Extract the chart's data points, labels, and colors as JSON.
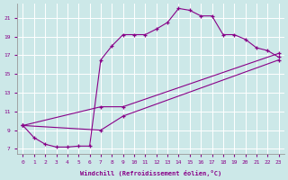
{
  "background_color": "#cce8e8",
  "grid_color": "#ffffff",
  "line_color": "#880088",
  "xlabel": "Windchill (Refroidissement éolien,°C)",
  "xlim": [
    -0.5,
    23.5
  ],
  "ylim": [
    6.5,
    22.5
  ],
  "yticks": [
    7,
    9,
    11,
    13,
    15,
    17,
    19,
    21
  ],
  "xticks": [
    0,
    1,
    2,
    3,
    4,
    5,
    6,
    7,
    8,
    9,
    10,
    11,
    12,
    13,
    14,
    15,
    16,
    17,
    18,
    19,
    20,
    21,
    22,
    23
  ],
  "line1_x": [
    0,
    1,
    2,
    3,
    4,
    5,
    6,
    7,
    8,
    9,
    10,
    11,
    12,
    13,
    14,
    15,
    16,
    17,
    18,
    19,
    20,
    21,
    22,
    23
  ],
  "line1_y": [
    9.5,
    8.2,
    7.5,
    7.2,
    7.2,
    7.3,
    7.3,
    16.5,
    18.0,
    19.2,
    19.2,
    19.2,
    19.8,
    20.5,
    22.0,
    21.8,
    21.2,
    21.2,
    19.2,
    19.2,
    18.7,
    17.8,
    17.5,
    16.8
  ],
  "line2_x": [
    0,
    7,
    9,
    23
  ],
  "line2_y": [
    9.5,
    11.5,
    11.5,
    17.2
  ],
  "line3_x": [
    0,
    7,
    9,
    23
  ],
  "line3_y": [
    9.5,
    9.0,
    10.5,
    16.5
  ]
}
